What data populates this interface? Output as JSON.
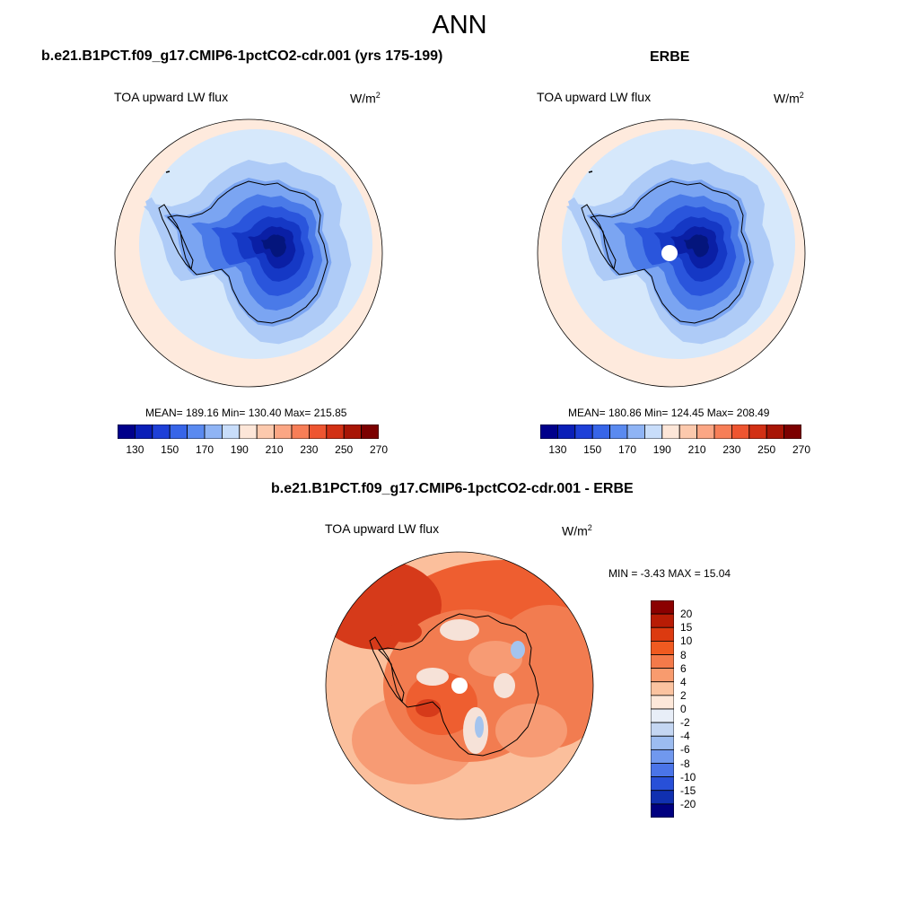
{
  "figure": {
    "season": "ANN",
    "variable_label": "TOA upward LW flux",
    "units_base": "W/m",
    "units_exp": "2"
  },
  "panels": [
    {
      "title": "b.e21.B1PCT.f09_g17.CMIP6-1pctCO2-cdr.001 (yrs 175-199)",
      "stats_text": "MEAN= 189.16  Min= 130.40  Max= 215.85",
      "mean": 189.16,
      "min": 130.4,
      "max": 215.85,
      "has_pole_gap": false
    },
    {
      "title": "ERBE",
      "stats_text": "MEAN= 180.86  Min= 124.45  Max= 208.49",
      "mean": 180.86,
      "min": 124.45,
      "max": 208.49,
      "has_pole_gap": true
    }
  ],
  "diff_panel": {
    "title": "b.e21.B1PCT.f09_g17.CMIP6-1pctCO2-cdr.001 - ERBE",
    "stats_text": "MIN =  -3.43 MAX =  15.04",
    "min": -3.43,
    "max": 15.04
  },
  "abs_colorbar": {
    "colors": [
      "#00008b",
      "#0a1fb8",
      "#1e40d8",
      "#3765e8",
      "#5a8af0",
      "#8fb4f5",
      "#c8ddfa",
      "#fde6d8",
      "#fcc9ad",
      "#fba684",
      "#f77e57",
      "#ee5530",
      "#d23014",
      "#a81505",
      "#7c0000"
    ],
    "tick_labels": [
      "130",
      "150",
      "170",
      "190",
      "210",
      "230",
      "250",
      "270"
    ]
  },
  "diff_colorbar": {
    "colors": [
      "#8b0000",
      "#b81c05",
      "#dc3a10",
      "#f05a20",
      "#f47a4a",
      "#f89b6e",
      "#fbc3a0",
      "#fde8da",
      "#e8eef8",
      "#c4d6f2",
      "#9cbcf0",
      "#7098ee",
      "#4a74e8",
      "#2850d8",
      "#1030b0",
      "#000080"
    ],
    "tick_labels": [
      "20",
      "15",
      "10",
      "8",
      "6",
      "4",
      "2",
      "0",
      "-2",
      "-4",
      "-6",
      "-8",
      "-10",
      "-15",
      "-20"
    ]
  },
  "map_colors": {
    "coast": "#000000",
    "abs_levels": [
      "#feeadd",
      "#d6e8fb",
      "#aecbf7",
      "#7ba5f2",
      "#4a7ae8",
      "#2a55dc",
      "#1538c5",
      "#0a1fa5",
      "#04157c"
    ],
    "diff_levels": [
      "#fbbf9c",
      "#f79b74",
      "#f27c50",
      "#ee5e30",
      "#d63a1a",
      "#f6e2d8",
      "#ffffff",
      "#a4c4ee"
    ]
  }
}
